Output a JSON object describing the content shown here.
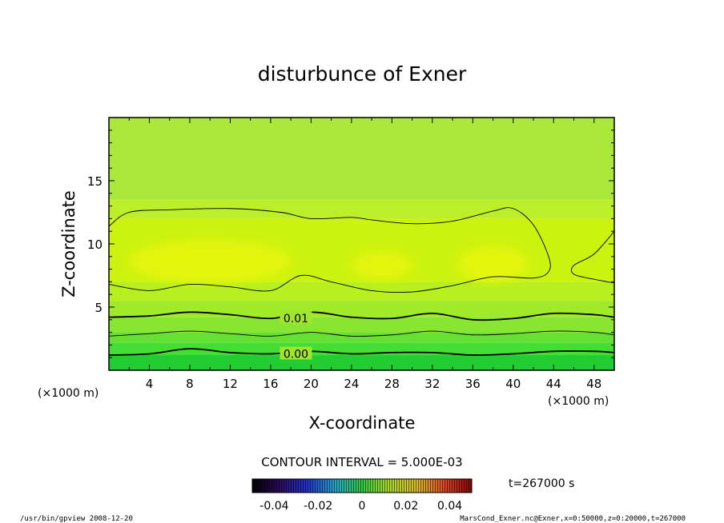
{
  "chart_data": {
    "type": "heatmap",
    "title": "disturbunce of Exner",
    "xlabel": "X-coordinate",
    "ylabel": "Z-coordinate",
    "x_unit": "(×1000 m)",
    "y_unit": "(×1000 m)",
    "xlim": [
      0,
      50
    ],
    "ylim": [
      0,
      20
    ],
    "x_ticks": [
      "4",
      "8",
      "12",
      "16",
      "20",
      "24",
      "28",
      "32",
      "36",
      "40",
      "44",
      "48"
    ],
    "y_ticks": [
      "5",
      "10",
      "15"
    ],
    "contour_interval_label": "CONTOUR INTERVAL = 5.000E-03",
    "time_label": "t=267000 s",
    "colorbar_ticks": [
      "-0.04",
      "-0.02",
      "0",
      "0.02",
      "0.04"
    ],
    "contour_labels": [
      {
        "text": "0.00",
        "level": 0.0
      },
      {
        "text": "0.01",
        "level": 0.01
      }
    ],
    "contours": [
      {
        "level": 0.0,
        "points": [
          [
            0,
            1.2
          ],
          [
            4,
            1.3
          ],
          [
            8,
            1.7
          ],
          [
            12,
            1.4
          ],
          [
            16,
            1.3
          ],
          [
            20,
            1.5
          ],
          [
            24,
            1.3
          ],
          [
            28,
            1.4
          ],
          [
            32,
            1.4
          ],
          [
            36,
            1.2
          ],
          [
            40,
            1.3
          ],
          [
            44,
            1.5
          ],
          [
            48,
            1.5
          ],
          [
            50,
            1.4
          ]
        ]
      },
      {
        "level": 0.005,
        "points": [
          [
            0,
            2.7
          ],
          [
            4,
            2.9
          ],
          [
            8,
            3.1
          ],
          [
            12,
            2.9
          ],
          [
            16,
            2.7
          ],
          [
            20,
            3.0
          ],
          [
            24,
            2.7
          ],
          [
            28,
            2.8
          ],
          [
            32,
            3.1
          ],
          [
            36,
            2.8
          ],
          [
            40,
            2.9
          ],
          [
            44,
            3.1
          ],
          [
            48,
            3.0
          ],
          [
            50,
            2.8
          ]
        ]
      },
      {
        "level": 0.01,
        "points": [
          [
            0,
            4.2
          ],
          [
            4,
            4.3
          ],
          [
            8,
            4.6
          ],
          [
            12,
            4.4
          ],
          [
            16,
            4.1
          ],
          [
            20,
            4.6
          ],
          [
            24,
            4.2
          ],
          [
            28,
            4.1
          ],
          [
            32,
            4.5
          ],
          [
            36,
            4.0
          ],
          [
            40,
            4.1
          ],
          [
            44,
            4.5
          ],
          [
            48,
            4.4
          ],
          [
            50,
            4.2
          ]
        ]
      },
      {
        "level": 0.015,
        "points": [
          [
            0,
            6.8
          ],
          [
            4,
            6.3
          ],
          [
            8,
            6.8
          ],
          [
            12,
            6.6
          ],
          [
            16,
            6.3
          ],
          [
            19,
            7.5
          ],
          [
            22,
            7.0
          ],
          [
            26,
            6.3
          ],
          [
            30,
            6.2
          ],
          [
            34,
            6.7
          ],
          [
            38,
            7.4
          ],
          [
            42,
            7.3
          ],
          [
            43.5,
            7.8
          ],
          [
            43.5,
            9.0
          ],
          [
            42,
            11.5
          ],
          [
            40,
            12.8
          ],
          [
            38,
            12.6
          ],
          [
            34,
            11.8
          ],
          [
            30,
            11.6
          ],
          [
            26,
            11.9
          ],
          [
            24,
            12.1
          ],
          [
            20,
            12.0
          ],
          [
            17,
            12.5
          ],
          [
            12,
            12.8
          ],
          [
            6,
            12.7
          ],
          [
            2,
            12.5
          ],
          [
            0,
            11.4
          ]
        ]
      },
      {
        "level": 0.015,
        "points": [
          [
            50,
            6.9
          ],
          [
            48,
            7.2
          ],
          [
            46,
            7.6
          ],
          [
            46,
            8.3
          ],
          [
            48,
            9.2
          ],
          [
            50,
            11.0
          ]
        ]
      }
    ],
    "field_bands": [
      {
        "z": [
          0,
          1.2
        ],
        "color": "#22cc33"
      },
      {
        "z": [
          1.2,
          2.2
        ],
        "color": "#44dd33"
      },
      {
        "z": [
          2.2,
          3.0
        ],
        "color": "#66e033"
      },
      {
        "z": [
          3.0,
          4.2
        ],
        "color": "#88e633"
      },
      {
        "z": [
          4.2,
          5.5
        ],
        "color": "#a0ea2a"
      },
      {
        "z": [
          5.5,
          7.0
        ],
        "color": "#b8ef1e"
      },
      {
        "z": [
          7.0,
          12.0
        ],
        "color": "#ccf30f"
      },
      {
        "z": [
          12.0,
          13.5
        ],
        "color": "#bcee2a"
      },
      {
        "z": [
          13.5,
          20.0
        ],
        "color": "#aae83a"
      }
    ],
    "maxima_blobs": [
      {
        "cx": 10,
        "cz": 8.6,
        "rx": 8,
        "rz": 1.7
      },
      {
        "cx": 27,
        "cz": 8.3,
        "rx": 3,
        "rz": 1.1
      },
      {
        "cx": 38,
        "cz": 8.4,
        "rx": 3.5,
        "rz": 1.4
      }
    ]
  },
  "footer": {
    "left": "/usr/bin/gpview   2008-12-20",
    "right": "MarsCond_Exner.nc@Exner,x=0:50000,z=0:20000,t=267000"
  }
}
